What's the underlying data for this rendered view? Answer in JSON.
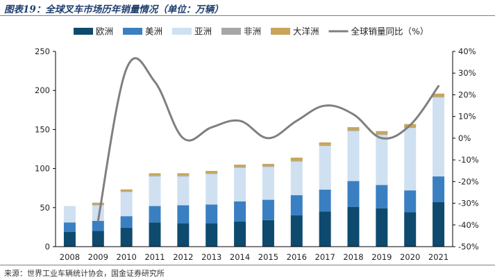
{
  "header": {
    "title": "图表19：全球叉车市场历年销量情况（单位：万辆）"
  },
  "footer": {
    "source": "来源：世界工业车辆统计协会，国金证券研究所"
  },
  "chart_data": {
    "type": "bar",
    "stacked": true,
    "title": "图表19：全球叉车市场历年销量情况（单位：万辆）",
    "categories": [
      "2008",
      "2009",
      "2010",
      "2011",
      "2012",
      "2013",
      "2014",
      "2015",
      "2016",
      "2017",
      "2018",
      "2019",
      "2020",
      "2021"
    ],
    "series": [
      {
        "name": "欧洲",
        "kind": "bar",
        "color": "#0d4a6e",
        "values": [
          19,
          20,
          24,
          31,
          30,
          30,
          32,
          34,
          40,
          45,
          51,
          49,
          44,
          57
        ]
      },
      {
        "name": "美洲",
        "kind": "bar",
        "color": "#3a7fc1",
        "values": [
          12,
          13,
          15,
          21,
          23,
          24,
          26,
          26,
          26,
          28,
          33,
          30,
          28,
          33
        ]
      },
      {
        "name": "亚洲",
        "kind": "bar",
        "color": "#cfe0f1",
        "values": [
          21,
          20,
          31,
          38,
          37,
          39,
          43,
          42,
          43,
          56,
          64,
          64,
          80,
          101
        ]
      },
      {
        "name": "非洲",
        "kind": "bar",
        "color": "#a6a6a6",
        "values": [
          0,
          0.8,
          0.8,
          1,
          1,
          1,
          1,
          1,
          1,
          1,
          1,
          1,
          1,
          1
        ]
      },
      {
        "name": "大洋洲",
        "kind": "bar",
        "color": "#c9a55a",
        "values": [
          0,
          2.5,
          2.5,
          3,
          3,
          3,
          3,
          3,
          4,
          3.5,
          4,
          4,
          4,
          4
        ]
      },
      {
        "name": "全球销量同比（%）",
        "kind": "line",
        "color": "#7f7f7f",
        "axis": "right",
        "values": [
          null,
          -38,
          32,
          26,
          0,
          5,
          8,
          0,
          8,
          15,
          11,
          0,
          6,
          24
        ]
      }
    ],
    "y_left": {
      "min": 0,
      "max": 250,
      "ticks": [
        0,
        50,
        100,
        150,
        200,
        250
      ]
    },
    "y_right": {
      "min": -50,
      "max": 40,
      "ticks": [
        -50,
        -40,
        -30,
        -20,
        -10,
        0,
        10,
        20,
        30,
        40
      ],
      "format": "percent"
    },
    "legend_position": "top",
    "grid": false
  }
}
